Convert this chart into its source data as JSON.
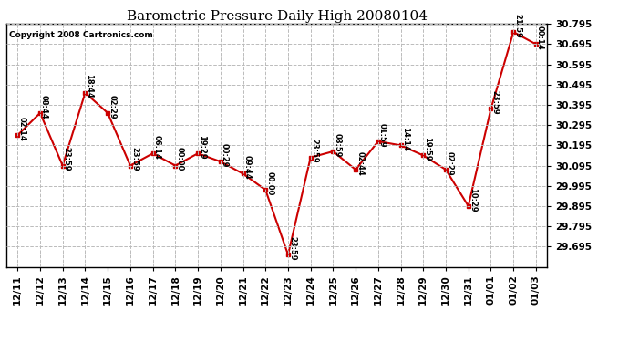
{
  "title": "Barometric Pressure Daily High 20080104",
  "copyright": "Copyright 2008 Cartronics.com",
  "x_labels": [
    "12/11",
    "12/12",
    "12/13",
    "12/14",
    "12/15",
    "12/16",
    "12/17",
    "12/18",
    "12/19",
    "12/20",
    "12/21",
    "12/22",
    "12/23",
    "12/24",
    "12/25",
    "12/26",
    "12/27",
    "12/28",
    "12/29",
    "12/30",
    "12/31",
    "01/01",
    "01/02",
    "01/03"
  ],
  "y_values": [
    30.245,
    30.355,
    30.095,
    30.455,
    30.355,
    30.095,
    30.155,
    30.095,
    30.155,
    30.115,
    30.055,
    29.975,
    29.655,
    30.135,
    30.165,
    30.075,
    30.215,
    30.195,
    30.145,
    30.075,
    29.895,
    30.375,
    30.755,
    30.695
  ],
  "point_labels": [
    "02:14",
    "08:44",
    "23:59",
    "18:44",
    "02:29",
    "23:59",
    "06:14",
    "00:00",
    "19:29",
    "00:29",
    "09:44",
    "00:00",
    "23:59",
    "23:59",
    "08:59",
    "02:44",
    "01:59",
    "14:14",
    "19:59",
    "02:29",
    "10:29",
    "23:59",
    "21:59",
    "00:14"
  ],
  "line_color": "#cc0000",
  "marker_color": "#cc0000",
  "background_color": "#ffffff",
  "grid_color": "#bbbbbb",
  "ylim_min": 29.595,
  "ylim_max": 30.795,
  "ytick_interval": 0.1
}
